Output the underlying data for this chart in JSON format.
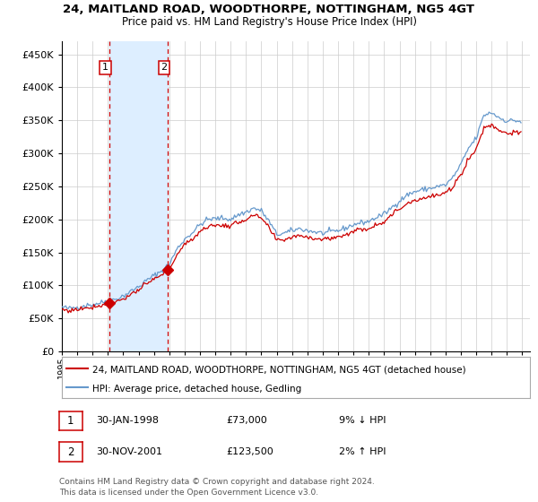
{
  "title": "24, MAITLAND ROAD, WOODTHORPE, NOTTINGHAM, NG5 4GT",
  "subtitle": "Price paid vs. HM Land Registry's House Price Index (HPI)",
  "legend_line1": "24, MAITLAND ROAD, WOODTHORPE, NOTTINGHAM, NG5 4GT (detached house)",
  "legend_line2": "HPI: Average price, detached house, Gedling",
  "sale1_x": 1998.083,
  "sale1_price": 73000,
  "sale1_label": "30-JAN-1998",
  "sale1_pct": "9% ↓ HPI",
  "sale2_x": 2001.917,
  "sale2_price": 123500,
  "sale2_label": "30-NOV-2001",
  "sale2_pct": "2% ↑ HPI",
  "yticks": [
    0,
    50000,
    100000,
    150000,
    200000,
    250000,
    300000,
    350000,
    400000,
    450000
  ],
  "ylim": [
    0,
    470000
  ],
  "xlim_start": 1995.0,
  "xlim_end": 2025.5,
  "red_color": "#cc0000",
  "blue_color": "#6699cc",
  "shade_color": "#ddeeff",
  "grid_color": "#cccccc",
  "footnote_line1": "Contains HM Land Registry data © Crown copyright and database right 2024.",
  "footnote_line2": "This data is licensed under the Open Government Licence v3.0.",
  "hpi_anchors_x": [
    1995.0,
    1995.5,
    1996.0,
    1996.5,
    1997.0,
    1997.5,
    1998.0,
    1998.5,
    1999.0,
    1999.5,
    2000.0,
    2000.5,
    2001.0,
    2001.5,
    2002.0,
    2002.5,
    2003.0,
    2003.5,
    2004.0,
    2004.5,
    2005.0,
    2005.5,
    2006.0,
    2006.5,
    2007.0,
    2007.5,
    2008.0,
    2008.5,
    2009.0,
    2009.5,
    2010.0,
    2010.5,
    2011.0,
    2011.5,
    2012.0,
    2012.5,
    2013.0,
    2013.5,
    2014.0,
    2014.5,
    2015.0,
    2015.5,
    2016.0,
    2016.5,
    2017.0,
    2017.5,
    2018.0,
    2018.5,
    2019.0,
    2019.5,
    2020.0,
    2020.5,
    2021.0,
    2021.5,
    2022.0,
    2022.5,
    2023.0,
    2023.5,
    2024.0,
    2024.5,
    2024.92
  ],
  "hpi_anchors_y": [
    67000,
    65000,
    67000,
    69500,
    71000,
    73500,
    76500,
    79000,
    84000,
    91000,
    98000,
    107000,
    115000,
    122000,
    132000,
    155000,
    170000,
    180000,
    192000,
    200000,
    201000,
    202000,
    200000,
    207000,
    211000,
    217000,
    213000,
    197000,
    177000,
    179000,
    183000,
    186000,
    183000,
    181000,
    179000,
    181000,
    183000,
    187000,
    192000,
    195000,
    197000,
    203000,
    208000,
    218000,
    228000,
    237000,
    242000,
    245000,
    247000,
    250000,
    252000,
    264000,
    283000,
    308000,
    323000,
    358000,
    362000,
    354000,
    349000,
    350000,
    348000
  ]
}
